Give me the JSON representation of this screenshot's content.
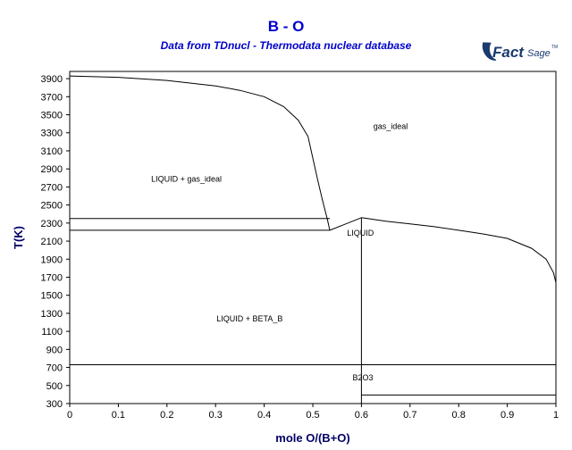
{
  "header": {
    "title": "B - O",
    "subtitle": "Data from TDnucl - Thermodata nuclear database",
    "logo_text_a": "Fact",
    "logo_text_b": "Sage",
    "logo_tm": "TM"
  },
  "colors": {
    "title": "#0000cc",
    "axis_label": "#000066",
    "logo": "#1a3a6e",
    "line": "#000000"
  },
  "chart_data": {
    "type": "line",
    "xlabel": "mole O/(B+O)",
    "ylabel": "T(K)",
    "xlim": [
      0,
      1
    ],
    "ylim": [
      300,
      4000
    ],
    "xticks": [
      0,
      0.1,
      0.2,
      0.3,
      0.4,
      0.5,
      0.6,
      0.7,
      0.8,
      0.9,
      1
    ],
    "yticks": [
      300,
      500,
      700,
      900,
      1100,
      1300,
      1500,
      1700,
      1900,
      2100,
      2300,
      2500,
      2700,
      2900,
      3100,
      3300,
      3500,
      3700,
      3900
    ],
    "grid": false,
    "lines": [
      {
        "points": [
          [
            0,
            3930
          ],
          [
            0.1,
            3915
          ],
          [
            0.2,
            3880
          ],
          [
            0.3,
            3820
          ],
          [
            0.35,
            3770
          ],
          [
            0.4,
            3700
          ],
          [
            0.44,
            3590
          ],
          [
            0.47,
            3440
          ],
          [
            0.49,
            3260
          ],
          [
            0.5,
            3020
          ],
          [
            0.51,
            2780
          ],
          [
            0.52,
            2550
          ],
          [
            0.53,
            2340
          ],
          [
            0.535,
            2220
          ]
        ]
      },
      {
        "points": [
          [
            0.535,
            2220
          ],
          [
            0.6,
            2360
          ]
        ]
      },
      {
        "points": [
          [
            0.6,
            2360
          ],
          [
            0.65,
            2320
          ],
          [
            0.7,
            2290
          ],
          [
            0.75,
            2260
          ],
          [
            0.8,
            2220
          ],
          [
            0.85,
            2180
          ],
          [
            0.9,
            2130
          ],
          [
            0.95,
            2020
          ],
          [
            0.98,
            1900
          ],
          [
            0.995,
            1750
          ],
          [
            1,
            1640
          ]
        ]
      },
      {
        "points": [
          [
            0,
            2350
          ],
          [
            0.535,
            2350
          ]
        ]
      },
      {
        "points": [
          [
            0,
            2220
          ],
          [
            0.535,
            2220
          ]
        ]
      },
      {
        "points": [
          [
            0.6,
            2360
          ],
          [
            0.6,
            300
          ]
        ]
      },
      {
        "points": [
          [
            0,
            730
          ],
          [
            1,
            730
          ]
        ]
      },
      {
        "points": [
          [
            0.6,
            395
          ],
          [
            1,
            395
          ]
        ]
      },
      {
        "points": [
          [
            0,
            2350
          ],
          [
            0,
            2900
          ]
        ]
      }
    ],
    "annotations": [
      {
        "text": "gas_ideal",
        "x": 0.66,
        "y": 3340
      },
      {
        "text": "LIQUID + gas_ideal",
        "x": 0.24,
        "y": 2760
      },
      {
        "text": "LIQUID",
        "x": 0.598,
        "y": 2160
      },
      {
        "text": "LIQUID + BETA_B",
        "x": 0.37,
        "y": 1210
      },
      {
        "text": "B2O3",
        "x": 0.603,
        "y": 555
      }
    ]
  }
}
